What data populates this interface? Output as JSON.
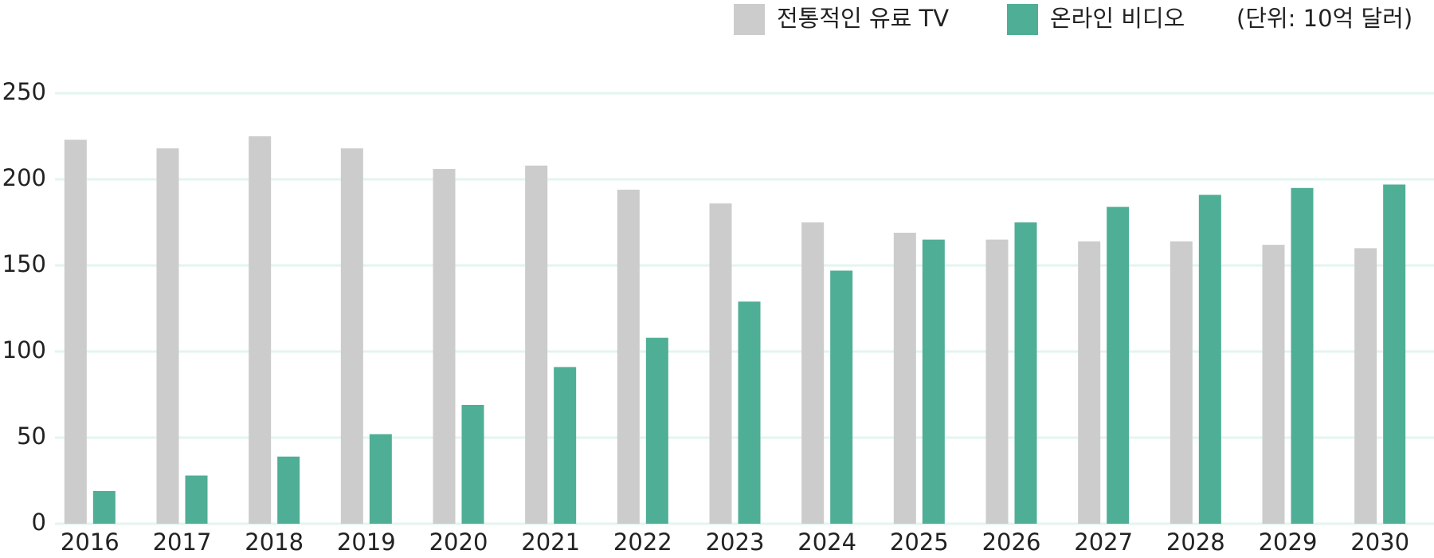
{
  "chart_data": {
    "type": "bar",
    "unit_note": "(단위: 10억 달러)",
    "categories": [
      "2016",
      "2017",
      "2018",
      "2019",
      "2020",
      "2021",
      "2022",
      "2023",
      "2024",
      "2025",
      "2026",
      "2027",
      "2028",
      "2029",
      "2030"
    ],
    "series": [
      {
        "name": "전통적인 유료 TV",
        "color": "#cccccc",
        "values": [
          223,
          218,
          225,
          218,
          206,
          208,
          194,
          186,
          175,
          169,
          165,
          164,
          164,
          162,
          160
        ]
      },
      {
        "name": "온라인 비디오",
        "color": "#4fae96",
        "values": [
          19,
          28,
          39,
          52,
          69,
          91,
          108,
          129,
          147,
          165,
          175,
          184,
          191,
          195,
          197
        ]
      }
    ],
    "ylim": [
      0,
      250
    ],
    "yticks": [
      0,
      50,
      100,
      150,
      200,
      250
    ],
    "grid": true,
    "legend": "top-right"
  }
}
